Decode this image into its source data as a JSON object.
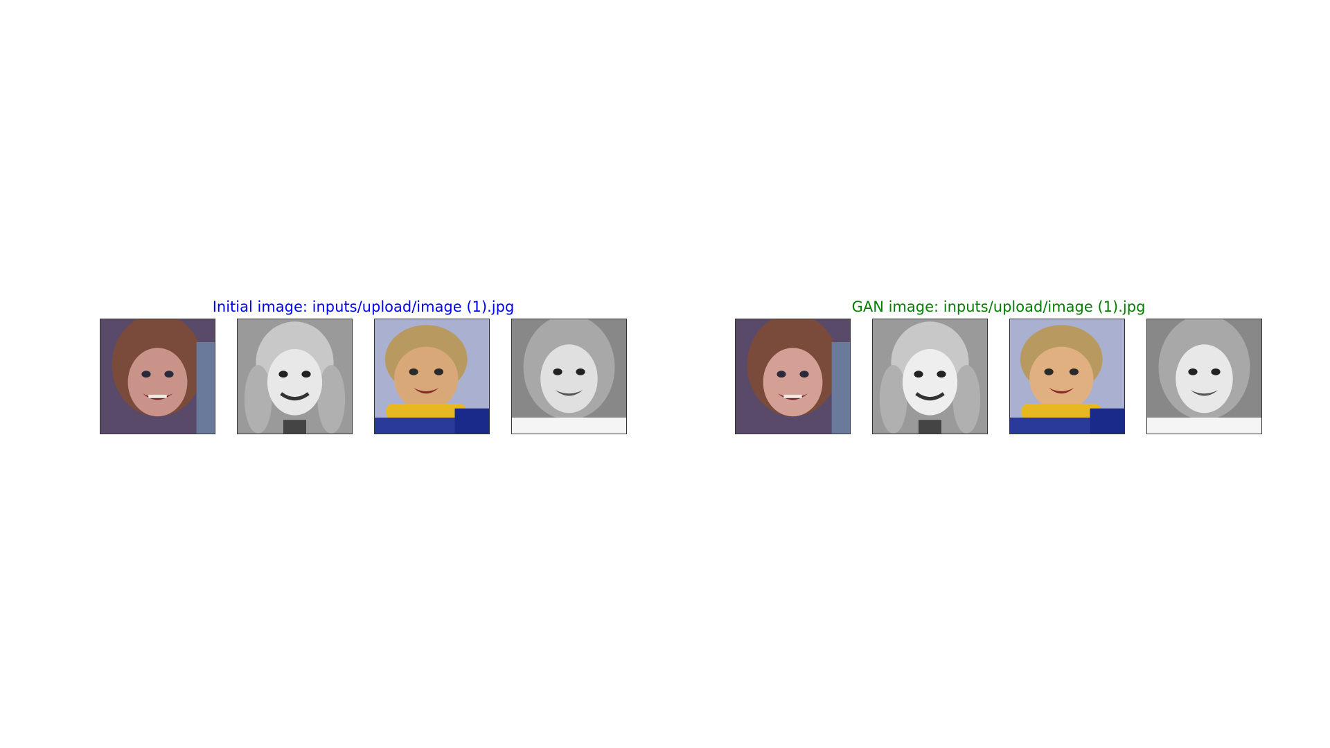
{
  "panels": [
    {
      "title": "Initial image: inputs/upload/image (1).jpg",
      "title_color": "#0000ff",
      "photos": [
        {
          "icon": "child-portrait-color-red-hair"
        },
        {
          "icon": "child-portrait-grayscale-pigtails"
        },
        {
          "icon": "toddler-portrait-color-yellow-scarf"
        },
        {
          "icon": "child-portrait-grayscale-smile"
        }
      ]
    },
    {
      "title": "GAN image: inputs/upload/image (1).jpg",
      "title_color": "#008000",
      "photos": [
        {
          "icon": "child-portrait-color-red-hair"
        },
        {
          "icon": "child-portrait-grayscale-pigtails"
        },
        {
          "icon": "toddler-portrait-color-yellow-scarf"
        },
        {
          "icon": "child-portrait-grayscale-smile"
        }
      ]
    }
  ]
}
